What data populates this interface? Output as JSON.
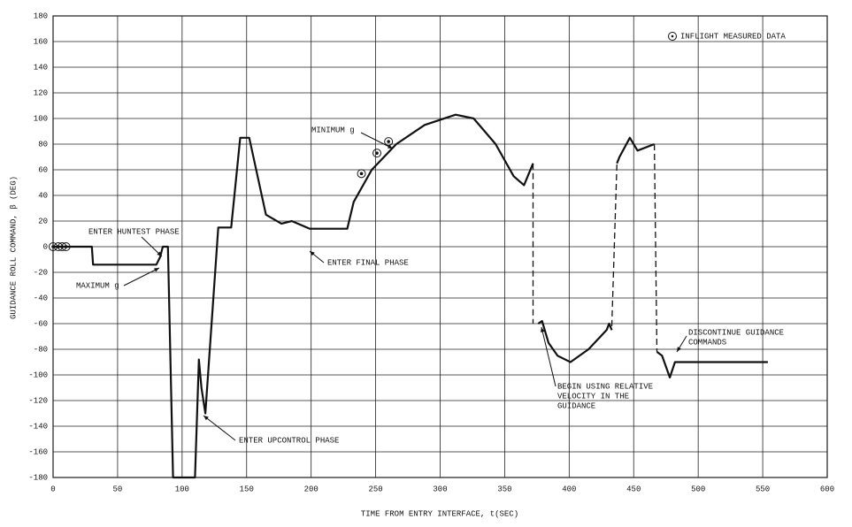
{
  "chart_data": {
    "type": "line",
    "xlabel": "TIME FROM ENTRY INTERFACE, t(SEC)",
    "ylabel": "GUIDANCE ROLL COMMAND, β (DEG)",
    "xlim": [
      0,
      600
    ],
    "ylim": [
      -180,
      180
    ],
    "xticks": [
      0,
      50,
      100,
      150,
      200,
      250,
      300,
      350,
      400,
      450,
      500,
      550,
      600
    ],
    "yticks": [
      -180,
      -160,
      -140,
      -120,
      -100,
      -80,
      -60,
      -40,
      -20,
      0,
      20,
      40,
      60,
      80,
      100,
      120,
      140,
      160,
      180
    ],
    "grid": true,
    "legend": "upper right",
    "series": [
      {
        "style": "solid",
        "color": "#111111",
        "x": [
          0,
          30,
          31,
          80,
          83,
          85,
          89,
          93,
          110,
          113,
          115,
          118,
          128,
          138,
          145,
          152,
          165,
          177,
          185,
          199,
          228,
          233,
          247,
          266,
          288,
          312,
          326,
          343,
          357,
          365,
          372,
          null,
          376,
          379,
          384,
          391,
          401,
          415,
          429,
          431,
          433,
          null,
          437,
          439,
          447,
          453,
          466,
          null,
          468,
          472,
          478,
          482,
          554
        ],
        "values": [
          0,
          0,
          -14,
          -14,
          -8,
          0,
          0,
          -180,
          -180,
          -88,
          -110,
          -130,
          15,
          15,
          85,
          85,
          25,
          18,
          20,
          14,
          14,
          35,
          60,
          80,
          95,
          103,
          100,
          80,
          55,
          48,
          65,
          null,
          -60,
          -58,
          -75,
          -85,
          -90,
          -80,
          -65,
          -60,
          -65,
          null,
          65,
          70,
          85,
          75,
          80,
          null,
          -82,
          -85,
          -102,
          -90,
          -90
        ]
      },
      {
        "style": "dashed",
        "color": "#111111",
        "x": [
          372,
          372,
          null,
          433,
          437,
          null,
          466,
          468
        ],
        "values": [
          65,
          -60,
          null,
          -62,
          65,
          null,
          80,
          -82
        ]
      },
      {
        "name": "INFLIGHT MEASURED DATA",
        "style": "markers",
        "color": "#111111",
        "x": [
          0,
          4,
          7,
          10,
          239,
          251,
          260
        ],
        "values": [
          0,
          0,
          0,
          0,
          57,
          73,
          82
        ]
      }
    ],
    "annotations": [
      [
        "ENTER HUNTEST PHASE"
      ],
      [
        "MAXIMUM g"
      ],
      [
        "ENTER UPCONTROL PHASE"
      ],
      [
        "ENTER FINAL PHASE"
      ],
      [
        "MINIMUM g"
      ],
      [
        "BEGIN USING RELATIVE",
        "VELOCITY IN THE",
        "GUIDANCE"
      ],
      [
        "DISCONTINUE GUIDANCE",
        "COMMANDS"
      ]
    ]
  }
}
